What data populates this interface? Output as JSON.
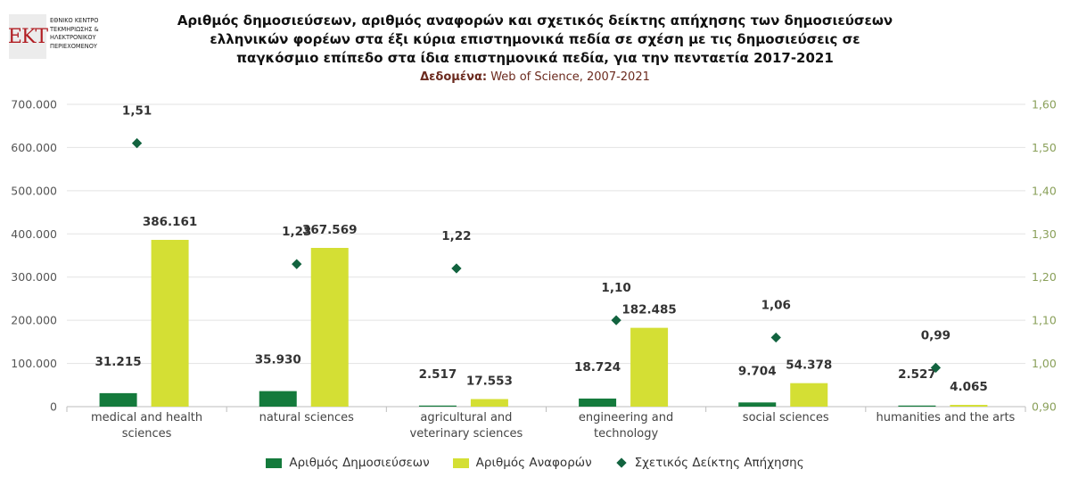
{
  "logo": {
    "mark": "EKT",
    "lines": [
      "ΕΘΝΙΚΟ ΚΕΝΤΡΟ",
      "ΤΕΚΜΗΡΙΩΣΗΣ &",
      "ΗΛΕΚΤΡΟΝΙΚΟΥ",
      "ΠΕΡΙΕΧΟΜΕΝΟΥ"
    ]
  },
  "colors": {
    "publications": "#147a3c",
    "citations": "#d4df34",
    "index": "#12633f",
    "left_axis_text": "#555555",
    "right_axis_text": "#8aa05a",
    "grid": "#e3e3e3"
  },
  "chart_data": {
    "type": "bar",
    "title": "Αριθμός δημοσιεύσεων, αριθμός αναφορών και σχετικός δείκτης απήχησης των δημοσιεύσεων ελληνικών φορέων στα έξι κύρια επιστημονικά πεδία σε σχέση με τις δημοσιεύσεις σε παγκόσμιο επίπεδο στα ίδια επιστημονικά πεδία, για την πενταετία 2017-2021",
    "title_lines": [
      "Αριθμός δημοσιεύσεων, αριθμός αναφορών και σχετικός δείκτης απήχησης των δημοσιεύσεων",
      "ελληνικών φορέων στα έξι κύρια επιστημονικά πεδία σε σχέση με τις δημοσιεύσεις σε",
      "παγκόσμιο επίπεδο στα ίδια επιστημονικά πεδία, για την πενταετία 2017-2021"
    ],
    "subtitle_label": "Δεδομένα:",
    "subtitle_value": "Web of Science, 2007-2021",
    "categories": [
      [
        "medical and health",
        "sciences"
      ],
      [
        "natural sciences"
      ],
      [
        "agricultural and",
        "veterinary sciences"
      ],
      [
        "engineering and",
        "technology"
      ],
      [
        "social sciences"
      ],
      [
        "humanities and the arts"
      ]
    ],
    "series": [
      {
        "name": "Αριθμός Δημοσιεύσεων",
        "type": "bar",
        "axis": "left",
        "values": [
          31215,
          35930,
          2517,
          18724,
          9704,
          2527
        ],
        "labels": [
          "31.215",
          "35.930",
          "2.517",
          "18.724",
          "9.704",
          "2.527"
        ]
      },
      {
        "name": "Αριθμός Αναφορών",
        "type": "bar",
        "axis": "left",
        "values": [
          386161,
          367569,
          17553,
          182485,
          54378,
          4065
        ],
        "labels": [
          "386.161",
          "367.569",
          "17.553",
          "182.485",
          "54.378",
          "4.065"
        ]
      },
      {
        "name": "Σχετικός Δείκτης Απήχησης",
        "type": "scatter",
        "axis": "right",
        "values": [
          1.51,
          1.23,
          1.22,
          1.1,
          1.06,
          0.99
        ],
        "labels": [
          "1,51",
          "1,23",
          "1,22",
          "1,10",
          "1,06",
          "0,99"
        ]
      }
    ],
    "y_left": {
      "range": [
        0,
        700000
      ],
      "ticks": [
        0,
        100000,
        200000,
        300000,
        400000,
        500000,
        600000,
        700000
      ],
      "tick_labels": [
        "0",
        "100.000",
        "200.000",
        "300.000",
        "400.000",
        "500.000",
        "600.000",
        "700.000"
      ]
    },
    "y_right": {
      "range": [
        0.9,
        1.6
      ],
      "ticks": [
        0.9,
        1.0,
        1.1,
        1.2,
        1.3,
        1.4,
        1.5,
        1.6
      ],
      "tick_labels": [
        "0,90",
        "1,00",
        "1,10",
        "1,20",
        "1,30",
        "1,40",
        "1,50",
        "1,60"
      ]
    },
    "grid": true,
    "legend_position": "bottom"
  }
}
